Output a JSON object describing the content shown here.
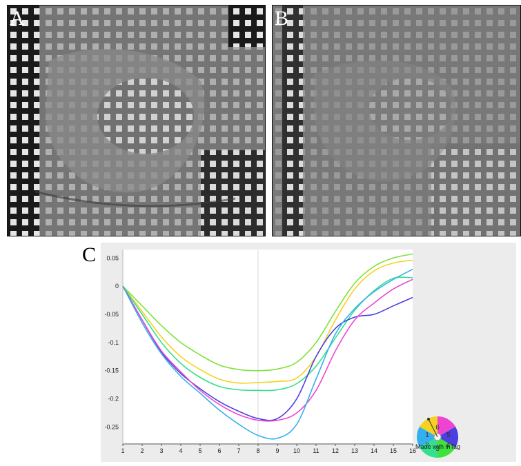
{
  "panels": {
    "a_label": "A",
    "b_label": "B",
    "c_label": "C"
  },
  "legend": {
    "caption": "Made with inTag",
    "numbers": [
      "1",
      "6",
      "5",
      "2",
      "3",
      "4"
    ],
    "colors": [
      "#f5d21d",
      "#ef44d2",
      "#4a3fe0",
      "#3de33d",
      "#34e08c",
      "#35b0ef"
    ]
  },
  "chart_data": {
    "type": "line",
    "x": [
      1,
      2,
      3,
      4,
      5,
      6,
      7,
      8,
      9,
      10,
      11,
      12,
      13,
      14,
      15,
      16
    ],
    "xlim": [
      1,
      16
    ],
    "ylim": [
      -0.28,
      0.065
    ],
    "yticks": [
      0.05,
      0,
      -0.05,
      -0.1,
      -0.15,
      -0.2,
      -0.25
    ],
    "ytick_labels": [
      "0.05",
      "0",
      "-0.05",
      "-0.1",
      "-0.15",
      "-0.2",
      "-0.25"
    ],
    "xtick_labels": [
      "1",
      "2",
      "3",
      "4",
      "5",
      "6",
      "7",
      "8",
      "9",
      "10",
      "11",
      "12",
      "13",
      "14",
      "15",
      "16"
    ],
    "grid": "vertical line at x=8",
    "series": [
      {
        "color": "#7fe23a",
        "values": [
          0,
          -0.035,
          -0.07,
          -0.1,
          -0.122,
          -0.14,
          -0.148,
          -0.15,
          -0.147,
          -0.135,
          -0.1,
          -0.045,
          0.005,
          0.035,
          0.05,
          0.057
        ]
      },
      {
        "color": "#f5d21d",
        "values": [
          0,
          -0.045,
          -0.09,
          -0.125,
          -0.148,
          -0.165,
          -0.172,
          -0.171,
          -0.169,
          -0.163,
          -0.125,
          -0.06,
          -0.005,
          0.027,
          0.041,
          0.046
        ]
      },
      {
        "color": "#34e08c",
        "values": [
          0,
          -0.05,
          -0.1,
          -0.137,
          -0.162,
          -0.178,
          -0.184,
          -0.185,
          -0.184,
          -0.173,
          -0.142,
          -0.092,
          -0.043,
          -0.008,
          0.014,
          0.015
        ]
      },
      {
        "color": "#4a3fe0",
        "values": [
          0,
          -0.06,
          -0.117,
          -0.155,
          -0.182,
          -0.205,
          -0.222,
          -0.235,
          -0.235,
          -0.2,
          -0.125,
          -0.075,
          -0.055,
          -0.05,
          -0.035,
          -0.02
        ]
      },
      {
        "color": "#ef44d2",
        "values": [
          0,
          -0.06,
          -0.115,
          -0.152,
          -0.185,
          -0.21,
          -0.228,
          -0.238,
          -0.238,
          -0.225,
          -0.185,
          -0.115,
          -0.06,
          -0.03,
          -0.005,
          0.012
        ]
      },
      {
        "color": "#35b0ef",
        "values": [
          0,
          -0.065,
          -0.12,
          -0.16,
          -0.19,
          -0.22,
          -0.245,
          -0.265,
          -0.27,
          -0.245,
          -0.165,
          -0.085,
          -0.04,
          -0.01,
          0.012,
          0.03
        ]
      }
    ]
  }
}
